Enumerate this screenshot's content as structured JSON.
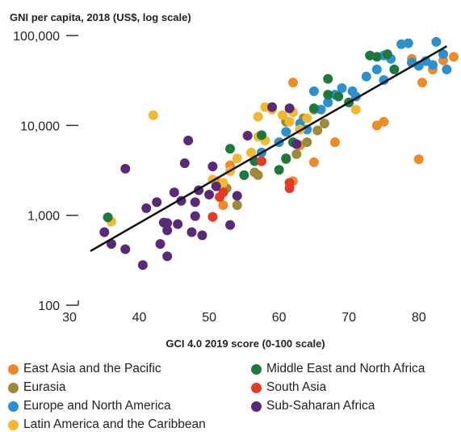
{
  "chart_data": {
    "type": "scatter",
    "ylabel": "GNI per capita, 2018 (US$, log scale)",
    "xlabel": "GCI 4.0 2019 score (0-100 scale)",
    "xlim": [
      30,
      85
    ],
    "ylim": [
      100,
      100000
    ],
    "yscale": "log",
    "xticks": [
      "30",
      "40",
      "50",
      "60",
      "70",
      "80"
    ],
    "yticks": [
      "100",
      "1,000",
      "10,000",
      "100,000"
    ],
    "trendline": {
      "x": [
        33.0,
        84.0
      ],
      "y": [
        400,
        76000
      ]
    },
    "legend_placement": "bottom",
    "grid": false,
    "series": [
      {
        "name": "East Asia and the Pacific",
        "color": "#f08a24",
        "points": [
          [
            53.0,
            3600
          ],
          [
            51.0,
            2400
          ],
          [
            52.0,
            1300
          ],
          [
            62.0,
            2400
          ],
          [
            63.0,
            6000
          ],
          [
            65.0,
            3900
          ],
          [
            68.0,
            6500
          ],
          [
            74.0,
            10000
          ],
          [
            75.0,
            11000
          ],
          [
            62.0,
            30000
          ],
          [
            79.0,
            55000
          ],
          [
            80.5,
            30000
          ],
          [
            82.0,
            42000
          ],
          [
            83.5,
            53000
          ],
          [
            85.0,
            58000
          ],
          [
            80.0,
            4200
          ]
        ]
      },
      {
        "name": "Eurasia",
        "color": "#9c8a38",
        "points": [
          [
            52.5,
            2000
          ],
          [
            54.0,
            1300
          ],
          [
            57.0,
            2800
          ],
          [
            56.5,
            3000
          ],
          [
            61.0,
            4200
          ],
          [
            62.5,
            4800
          ],
          [
            64.0,
            6500
          ],
          [
            63.0,
            9000
          ],
          [
            65.5,
            8800
          ],
          [
            66.5,
            10500
          ],
          [
            65.0,
            15000
          ],
          [
            61.0,
            11000
          ],
          [
            63.5,
            12000
          ]
        ]
      },
      {
        "name": "Europe and North America",
        "color": "#2a90cf",
        "points": [
          [
            57.5,
            5000
          ],
          [
            60.0,
            6500
          ],
          [
            61.0,
            8500
          ],
          [
            63.0,
            10500
          ],
          [
            64.0,
            9000
          ],
          [
            66.0,
            15000
          ],
          [
            67.0,
            18000
          ],
          [
            68.0,
            22000
          ],
          [
            69.0,
            26000
          ],
          [
            70.5,
            24000
          ],
          [
            71.0,
            21000
          ],
          [
            72.5,
            35000
          ],
          [
            74.0,
            42000
          ],
          [
            75.0,
            60000
          ],
          [
            76.0,
            55000
          ],
          [
            77.5,
            80000
          ],
          [
            78.5,
            82000
          ],
          [
            79.0,
            50000
          ],
          [
            80.0,
            46000
          ],
          [
            81.0,
            52000
          ],
          [
            82.0,
            47000
          ],
          [
            82.5,
            85000
          ],
          [
            83.5,
            62000
          ],
          [
            84.0,
            42000
          ],
          [
            75.0,
            32000
          ],
          [
            65.0,
            24000
          ]
        ]
      },
      {
        "name": "Latin America and the Caribbean",
        "color": "#f5b72f",
        "points": [
          [
            42.0,
            13000
          ],
          [
            36.0,
            850
          ],
          [
            50.5,
            2500
          ],
          [
            52.0,
            2300
          ],
          [
            53.0,
            3100
          ],
          [
            54.0,
            4300
          ],
          [
            56.0,
            5000
          ],
          [
            57.0,
            7500
          ],
          [
            58.0,
            6800
          ],
          [
            58.0,
            16000
          ],
          [
            59.0,
            15000
          ],
          [
            60.5,
            13000
          ],
          [
            61.5,
            11000
          ],
          [
            62.0,
            14000
          ],
          [
            63.0,
            9000
          ],
          [
            64.0,
            12000
          ],
          [
            71.0,
            15000
          ],
          [
            57.0,
            12500
          ]
        ]
      },
      {
        "name": "Middle East and North Africa",
        "color": "#1d7a3e",
        "points": [
          [
            35.5,
            950
          ],
          [
            53.0,
            5500
          ],
          [
            55.0,
            2800
          ],
          [
            56.5,
            4000
          ],
          [
            57.5,
            7800
          ],
          [
            60.0,
            3200
          ],
          [
            61.0,
            4300
          ],
          [
            62.0,
            6500
          ],
          [
            65.0,
            15500
          ],
          [
            67.0,
            22000
          ],
          [
            68.5,
            21000
          ],
          [
            70.0,
            18000
          ],
          [
            67.0,
            33000
          ],
          [
            73.0,
            60000
          ],
          [
            75.5,
            62000
          ],
          [
            76.5,
            42000
          ],
          [
            74.0,
            58000
          ]
        ]
      },
      {
        "name": "South Asia",
        "color": "#e63a22",
        "points": [
          [
            50.5,
            960
          ],
          [
            51.5,
            1600
          ],
          [
            52.0,
            1800
          ],
          [
            57.5,
            4000
          ],
          [
            61.5,
            2000
          ],
          [
            61.5,
            2300
          ]
        ]
      },
      {
        "name": "Sub-Saharan Africa",
        "color": "#5a2a7a",
        "points": [
          [
            35.0,
            650
          ],
          [
            36.0,
            480
          ],
          [
            38.0,
            420
          ],
          [
            38.0,
            3300
          ],
          [
            40.5,
            280
          ],
          [
            41.0,
            1200
          ],
          [
            42.5,
            1400
          ],
          [
            43.0,
            480
          ],
          [
            43.5,
            830
          ],
          [
            44.0,
            820
          ],
          [
            44.0,
            350
          ],
          [
            45.0,
            1800
          ],
          [
            45.5,
            800
          ],
          [
            46.0,
            1450
          ],
          [
            46.5,
            3800
          ],
          [
            47.0,
            6800
          ],
          [
            47.5,
            650
          ],
          [
            48.0,
            1400
          ],
          [
            48.0,
            980
          ],
          [
            48.5,
            1900
          ],
          [
            49.0,
            600
          ],
          [
            50.0,
            1700
          ],
          [
            50.5,
            3500
          ],
          [
            51.0,
            2100
          ],
          [
            53.0,
            780
          ],
          [
            54.0,
            1650
          ],
          [
            55.5,
            7700
          ],
          [
            59.0,
            16000
          ],
          [
            62.5,
            6200
          ],
          [
            61.5,
            15500
          ],
          [
            44.0,
            680
          ]
        ]
      }
    ]
  }
}
